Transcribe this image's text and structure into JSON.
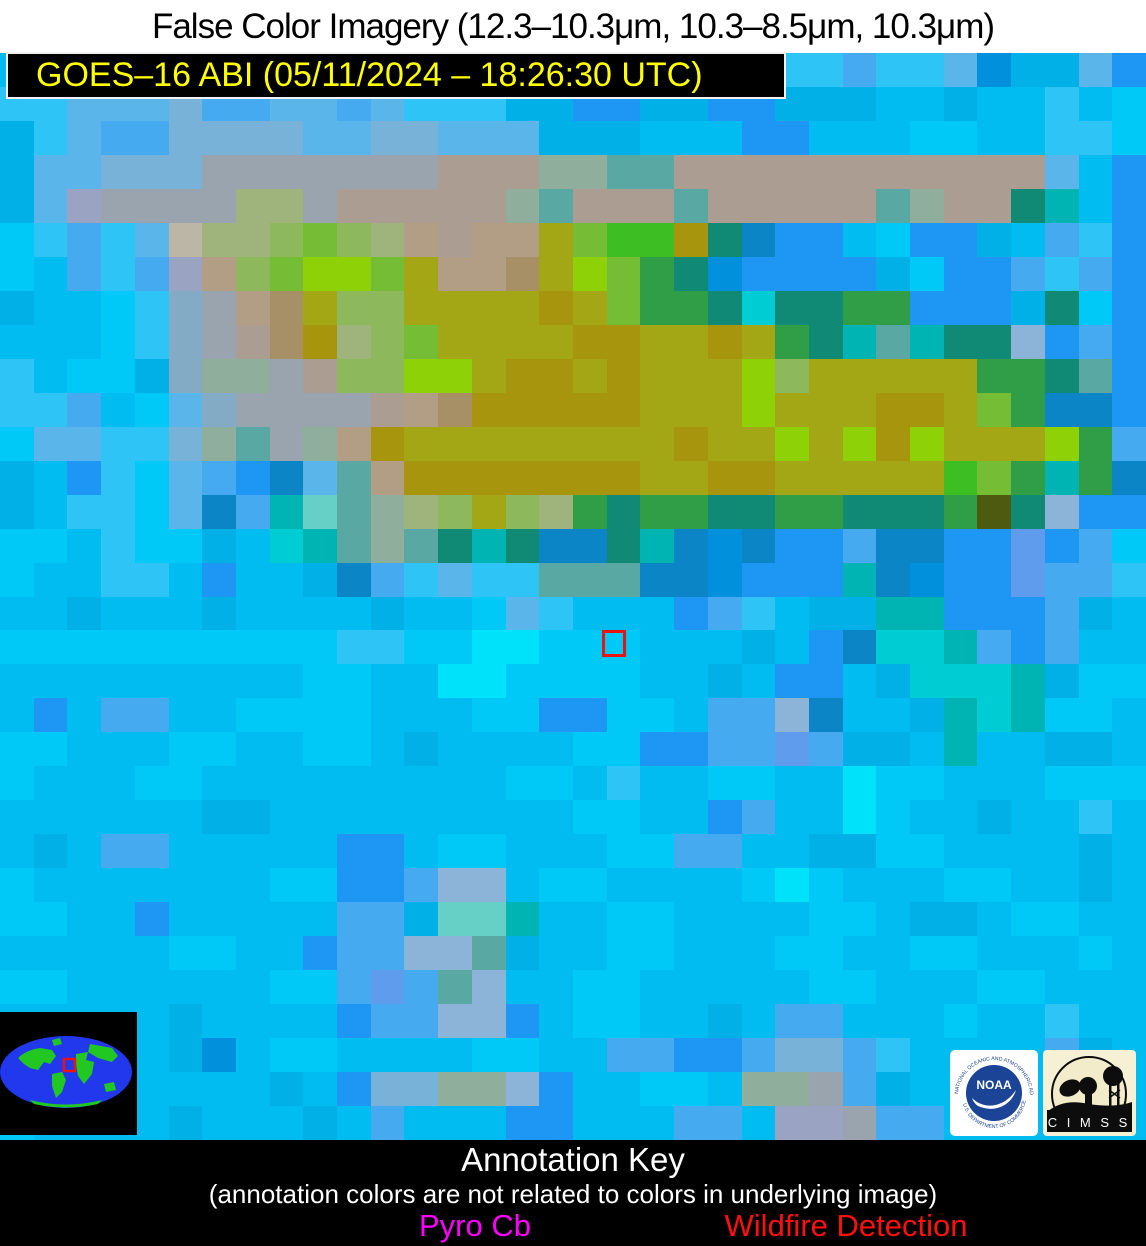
{
  "header": {
    "title": "False Color Imagery (12.3–10.3μm, 10.3–8.5μm, 10.3μm)",
    "satellite_banner": "GOES–16 ABI (05/11/2024 – 18:26:30 UTC)",
    "banner_bg": "#000000",
    "banner_text_color": "#ffff00"
  },
  "imagery": {
    "cols": 34,
    "rows": 32,
    "palette": [
      "#00c9f8",
      "#00bcf0",
      "#00b0e6",
      "#2fc4f6",
      "#5ab6ea",
      "#78b2d8",
      "#00e2fa",
      "#0090dc",
      "#1e97f4",
      "#46aaf0",
      "#5f9cee",
      "#84abc6",
      "#9aa4ae",
      "#ab9d92",
      "#b29e84",
      "#a78f66",
      "#9fb37d",
      "#8db95c",
      "#74bd35",
      "#3dbf24",
      "#8ed106",
      "#a3a716",
      "#a6950d",
      "#2f9e46",
      "#108a74",
      "#00b4b4",
      "#5aa8a4",
      "#90ae9c",
      "#bcb6a6",
      "#9aa3c2",
      "#00ccd4",
      "#66d0c6",
      "#8cb4d8",
      "#4d5a10",
      "#0c85c6",
      "#b08a62"
    ],
    "grid_rows": [
      "1111111111111111111111133933472248",
      "3344459944943332288228822211211310",
      "2349955554455444222111881110011330",
      "244555cccccccdddrrqqddddddddddd418",
      "24tccccggcdddddrqdddqdddddqrddop18",
      "03934sgghihgedeelijjmoy88108821938",
      "01939tehikkileeflkino7888820889398",
      "21103bceflhhllllmlinnouoonn8882o08",
      "11103bcdfmghillllmmllmlnopqpoow898",
      "31002brrcdhhkklmmlmlllkhlllllnnoq8",
      "339104bccccdefmmmmmlllklllmmlinyy8",
      "044335rqcremllllllllmllklkmklllkn9",
      "21830498y4qemmmmmmmllmmllllljinpny",
      "213304y9pvqrghlhgnonnoonnooonxow88",
      "00130021upqrqopoyyopy7y889yy88a890",
      "0113318112y93433qqqyy7888py788a993",
      "11211121111211043111893122pp888921",
      "0000000000330066000111218yuup98911",
      "111111111001166000011218812uuup200",
      "18199110000111008800199wy112pup001",
      "00111001100121111008899a9221p11221",
      "0111001111111110013110011600111000",
      "1111112211111111100118911601121131",
      "1219911111881001110099112200111121",
      "0111111100889ww1001111060111001121",
      "0011811111992vvp110011110012210011",
      "111110011899wwq2110011100110011101",
      "00111111009a9qw1100111110011100111",
      "1111121111899ww8100112199111011311",
      "1277127100111100119988955931111921",
      "1112111121855rrw811001rrc921111111",
      "01111211121911188111991ttc99111111"
    ],
    "wildfire_marker": {
      "color": "#e81414"
    }
  },
  "inset_map": {
    "ocean_color": "#2138ec",
    "land_color": "#22c822",
    "marker_color": "#e81414",
    "background": "#000000"
  },
  "logos": {
    "noaa": {
      "text": "NOAA",
      "ring_top": "NATIONAL OCEANIC AND ATMOSPHERIC ADMINISTRATION",
      "ring_bottom": "U.S. DEPARTMENT OF COMMERCE",
      "circle_color": "#1b4396"
    },
    "cimss": {
      "text": "C I M S S",
      "background": "#f6f0d4",
      "silhouette_color": "#0d0d0d"
    }
  },
  "annotation_key": {
    "title": "Annotation Key",
    "subtitle": "(annotation colors are not related to colors in underlying image)",
    "items": [
      {
        "label": "Pyro Cb",
        "color": "#ff00ff"
      },
      {
        "label": "Wildfire Detection",
        "color": "#ff1010"
      }
    ]
  }
}
